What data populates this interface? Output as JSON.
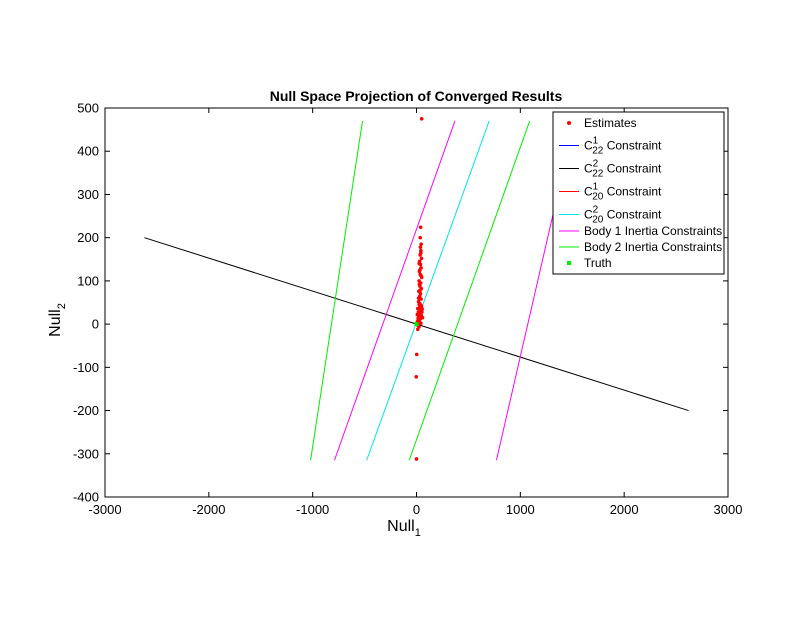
{
  "chart_data": {
    "type": "scatter",
    "title": "Null Space Projection of Converged Results",
    "xlabel": {
      "base": "Null",
      "sub": "1"
    },
    "ylabel": {
      "base": "Null",
      "sub": "2"
    },
    "xlim": [
      -3000,
      3000
    ],
    "ylim": [
      -400,
      500
    ],
    "xticks": [
      -3000,
      -2000,
      -1000,
      0,
      1000,
      2000,
      3000
    ],
    "yticks": [
      -400,
      -300,
      -200,
      -100,
      0,
      100,
      200,
      300,
      400,
      500
    ],
    "legend_position": "top-right",
    "legend": [
      {
        "key": "estimates",
        "text": "Estimates",
        "kind": "dot",
        "color": "#ff0000"
      },
      {
        "key": "c22_1",
        "base": "C",
        "sup": "1",
        "sub": "22",
        "rest": " Constraint",
        "kind": "line",
        "color": "#0000ff"
      },
      {
        "key": "c22_2",
        "base": "C",
        "sup": "2",
        "sub": "22",
        "rest": " Constraint",
        "kind": "line",
        "color": "#000000"
      },
      {
        "key": "c20_1",
        "base": "C",
        "sup": "1",
        "sub": "20",
        "rest": " Constraint",
        "kind": "line",
        "color": "#ff0000"
      },
      {
        "key": "c20_2",
        "base": "C",
        "sup": "2",
        "sub": "20",
        "rest": " Constraint",
        "kind": "line",
        "color": "#00e5e5"
      },
      {
        "key": "body1",
        "text": "Body 1 Inertia Constraints",
        "kind": "line",
        "color": "#ff00ff"
      },
      {
        "key": "body2",
        "text": "Body 2 Inertia Constraints",
        "kind": "line",
        "color": "#00ee00"
      },
      {
        "key": "truth",
        "text": "Truth",
        "kind": "square",
        "color": "#00ee00"
      }
    ],
    "lines": [
      {
        "series": "c22_2",
        "color": "#000000",
        "points": [
          [
            -2620,
            200
          ],
          [
            2620,
            -200
          ]
        ]
      },
      {
        "series": "c20_2",
        "color": "#00e5e5",
        "points": [
          [
            -480,
            -315
          ],
          [
            700,
            470
          ]
        ]
      },
      {
        "series": "body1",
        "color": "#ff00ff",
        "points": [
          [
            -790,
            -315
          ],
          [
            370,
            470
          ]
        ]
      },
      {
        "series": "body1",
        "color": "#ff00ff",
        "points": [
          [
            770,
            -315
          ],
          [
            1340,
            280
          ]
        ]
      },
      {
        "series": "body2",
        "color": "#00ee00",
        "points": [
          [
            -1020,
            -315
          ],
          [
            -520,
            470
          ]
        ]
      },
      {
        "series": "body2",
        "color": "#00ee00",
        "points": [
          [
            -70,
            -315
          ],
          [
            1090,
            470
          ]
        ]
      }
    ],
    "truth": {
      "x": 0,
      "y": 0,
      "color": "#00ee00"
    },
    "estimates": {
      "color": "#ff0000",
      "points": [
        [
          50,
          475
        ],
        [
          40,
          224
        ],
        [
          45,
          185
        ],
        [
          38,
          178
        ],
        [
          42,
          170
        ],
        [
          35,
          160
        ],
        [
          48,
          152
        ],
        [
          30,
          145
        ],
        [
          38,
          138
        ],
        [
          44,
          130
        ],
        [
          28,
          122
        ],
        [
          36,
          115
        ],
        [
          50,
          108
        ],
        [
          25,
          100
        ],
        [
          40,
          95
        ],
        [
          33,
          88
        ],
        [
          46,
          82
        ],
        [
          22,
          76
        ],
        [
          38,
          70
        ],
        [
          30,
          64
        ],
        [
          44,
          58
        ],
        [
          20,
          52
        ],
        [
          34,
          47
        ],
        [
          48,
          42
        ],
        [
          26,
          37
        ],
        [
          40,
          32
        ],
        [
          18,
          28
        ],
        [
          32,
          24
        ],
        [
          46,
          20
        ],
        [
          22,
          16
        ],
        [
          36,
          12
        ],
        [
          14,
          8
        ],
        [
          28,
          5
        ],
        [
          42,
          2
        ],
        [
          10,
          -2
        ],
        [
          24,
          -6
        ],
        [
          6,
          4
        ],
        [
          16,
          14
        ],
        [
          30,
          18
        ],
        [
          52,
          28
        ],
        [
          12,
          36
        ],
        [
          26,
          45
        ],
        [
          20,
          60
        ],
        [
          34,
          78
        ],
        [
          28,
          92
        ],
        [
          44,
          112
        ],
        [
          32,
          125
        ],
        [
          26,
          140
        ],
        [
          42,
          165
        ],
        [
          36,
          200
        ],
        [
          55,
          35
        ],
        [
          58,
          15
        ],
        [
          8,
          22
        ],
        [
          12,
          -12
        ],
        [
          2,
          -70
        ],
        [
          -2,
          -122
        ],
        [
          0,
          -312
        ]
      ]
    }
  }
}
